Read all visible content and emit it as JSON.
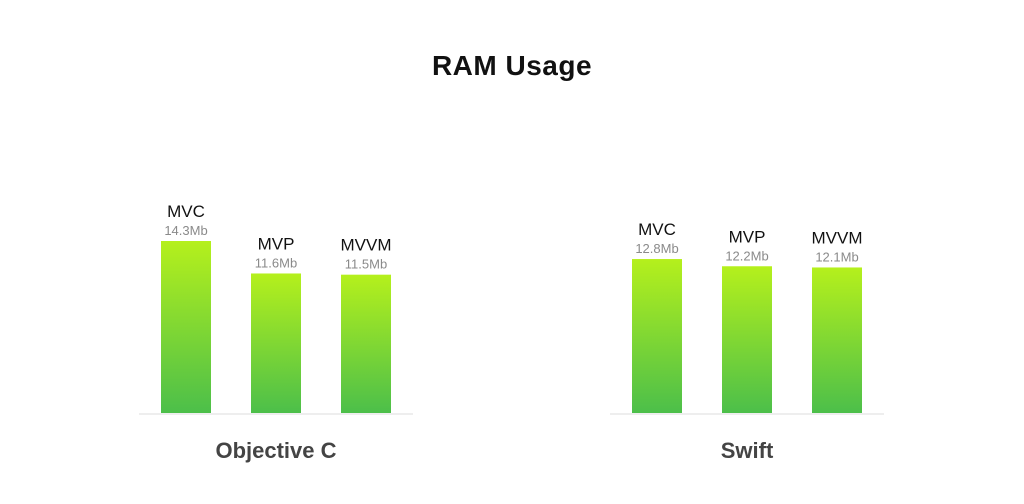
{
  "chart_data": {
    "type": "bar",
    "title": "RAM Usage",
    "xlabel": "",
    "ylabel": "",
    "unit": "Mb",
    "ylim": [
      0,
      14.3
    ],
    "grid": false,
    "legend": "none",
    "bar_color_top": "#b5f01c",
    "bar_color_bottom": "#4cbf4a",
    "groups": [
      {
        "name": "Objective C",
        "categories": [
          "MVC",
          "MVP",
          "MVVM"
        ],
        "values": [
          14.3,
          11.6,
          11.5
        ],
        "value_labels": [
          "14.3Mb",
          "11.6Mb",
          "11.5Mb"
        ]
      },
      {
        "name": "Swift",
        "categories": [
          "MVC",
          "MVP",
          "MVVM"
        ],
        "values": [
          12.8,
          12.2,
          12.1
        ],
        "value_labels": [
          "12.8Mb",
          "12.2Mb",
          "12.1Mb"
        ]
      }
    ]
  }
}
